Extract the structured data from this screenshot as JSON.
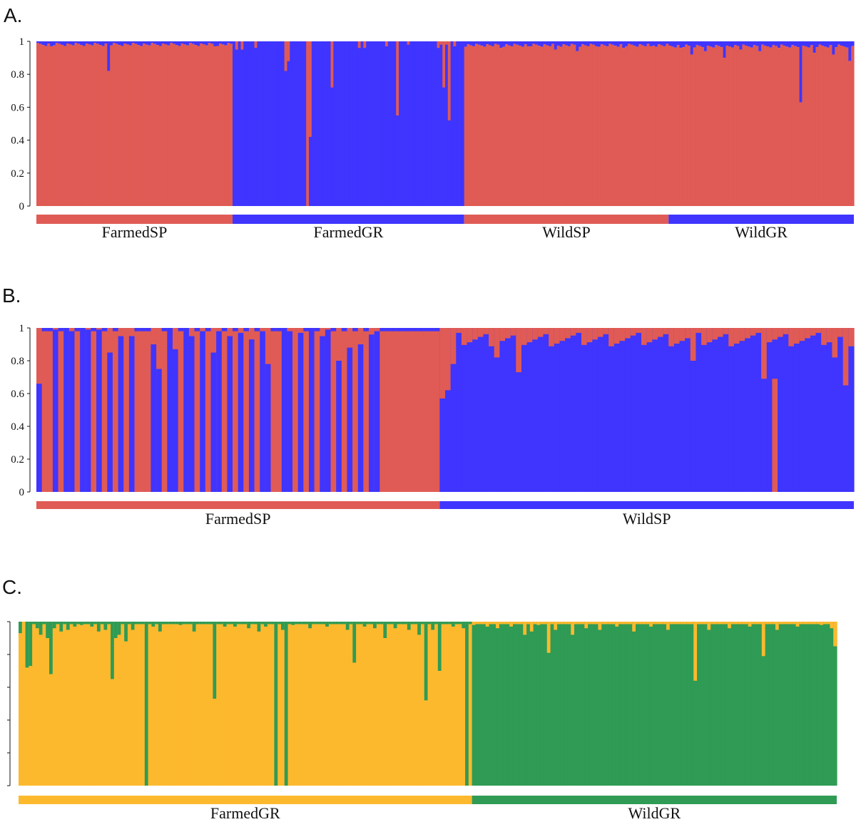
{
  "figure": {
    "panels": [
      "A.",
      "B.",
      "C."
    ]
  },
  "chart_data": [
    {
      "type": "bar",
      "stacked": true,
      "label": "A.",
      "n_individuals": 300,
      "ylim": [
        0,
        1
      ],
      "yticks": [
        "0",
        "0.2",
        "0.4",
        "0.6",
        "0.8",
        "1"
      ],
      "colors": [
        "#E05B55",
        "#3F35FF"
      ],
      "groups": [
        {
          "name": "FarmedSP",
          "start": 0,
          "end": 72,
          "color": "#E05B55",
          "dominant": 0,
          "base_minor": 0.01
        },
        {
          "name": "FarmedGR",
          "start": 72,
          "end": 157,
          "color": "#3F35FF",
          "dominant": 1,
          "base_minor": 0.0
        },
        {
          "name": "WildSP",
          "start": 157,
          "end": 232,
          "color": "#E05B55",
          "dominant": 0,
          "base_minor": 0.015
        },
        {
          "name": "WildGR",
          "start": 232,
          "end": 300,
          "color": "#3F35FF",
          "dominant": 0,
          "base_minor": 0.02
        }
      ],
      "spikes": [
        [
          26,
          0.82
        ],
        [
          65,
          0.03
        ],
        [
          5,
          0.03
        ],
        [
          40,
          0.02
        ],
        [
          73,
          0.05
        ],
        [
          75,
          0.05
        ],
        [
          80,
          0.04
        ],
        [
          91,
          0.18
        ],
        [
          92,
          0.12
        ],
        [
          99,
          1.0
        ],
        [
          100,
          0.58
        ],
        [
          108,
          0.28
        ],
        [
          118,
          0.04
        ],
        [
          120,
          0.04
        ],
        [
          128,
          0.03
        ],
        [
          132,
          0.45
        ],
        [
          136,
          0.02
        ],
        [
          147,
          0.04
        ],
        [
          148,
          0.02
        ],
        [
          149,
          0.28
        ],
        [
          150,
          0.02
        ],
        [
          151,
          0.48
        ],
        [
          153,
          0.03
        ],
        [
          170,
          0.04
        ],
        [
          180,
          0.03
        ],
        [
          190,
          0.05
        ],
        [
          198,
          0.06
        ],
        [
          205,
          0.03
        ],
        [
          215,
          0.04
        ],
        [
          225,
          0.03
        ],
        [
          236,
          0.04
        ],
        [
          240,
          0.08
        ],
        [
          245,
          0.06
        ],
        [
          252,
          0.1
        ],
        [
          258,
          0.05
        ],
        [
          265,
          0.06
        ],
        [
          272,
          0.04
        ],
        [
          280,
          0.37
        ],
        [
          285,
          0.07
        ],
        [
          292,
          0.08
        ],
        [
          298,
          0.12
        ]
      ],
      "bottom_spike": [
        [
          99,
          1.0
        ]
      ]
    },
    {
      "type": "bar",
      "stacked": true,
      "label": "B.",
      "n_individuals": 150,
      "ylim": [
        0,
        1
      ],
      "yticks": [
        "0",
        "0.2",
        "0.4",
        "0.6",
        "0.8",
        "1"
      ],
      "colors": [
        "#E05B55",
        "#3F35FF"
      ],
      "groups": [
        {
          "name": "FarmedSP",
          "start": 0,
          "end": 74,
          "color": "#E05B55"
        },
        {
          "name": "WildSP",
          "start": 74,
          "end": 150,
          "color": "#3F35FF"
        }
      ],
      "farmed_pattern": [
        0.66,
        0.0,
        0.0,
        0.64,
        0.0,
        0.0,
        0.0,
        0.0,
        0.72,
        0.0,
        0.0,
        0.84,
        0.0,
        0.0,
        0.0,
        0.0,
        0.52,
        0.0,
        0.0,
        0.0,
        0.0,
        0.92,
        0.0,
        0.0,
        0.0,
        0.0,
        0.0,
        0.8,
        0.0,
        0.0,
        0.0,
        0.0,
        0.52,
        0.0,
        0.0,
        0.0,
        0.0,
        0.2,
        0.0,
        0.0,
        0.0,
        0.0,
        0.68,
        0.0,
        0.0,
        0.0,
        0.0,
        0.95,
        0.0,
        0.0,
        0.0,
        0.0,
        0.38,
        0.0,
        0.0,
        0.0,
        0.0,
        0.0,
        0.0,
        0.85,
        0.0,
        0.0,
        0.0,
        0.0,
        0.0,
        0.0,
        0.0,
        0.0,
        0.0,
        0.0,
        0.0,
        0.0,
        0.0,
        0.0
      ],
      "farmed_blue_gaps": [
        [
          3,
          0.99
        ],
        [
          5,
          1
        ],
        [
          6,
          0.98
        ],
        [
          8,
          1
        ],
        [
          9,
          0.99
        ],
        [
          11,
          0.99
        ],
        [
          13,
          0.85
        ],
        [
          15,
          0.95
        ],
        [
          17,
          0.95
        ],
        [
          21,
          0.9
        ],
        [
          22,
          0.75
        ],
        [
          24,
          1.0
        ],
        [
          25,
          0.87
        ],
        [
          27,
          1.0
        ],
        [
          28,
          0.95
        ],
        [
          30,
          0.98
        ],
        [
          32,
          0.85
        ],
        [
          33,
          0.98
        ],
        [
          35,
          0.95
        ],
        [
          37,
          0.97
        ],
        [
          39,
          0.93
        ],
        [
          41,
          0.98
        ],
        [
          42,
          0.78
        ],
        [
          45,
          1.0
        ],
        [
          46,
          0.98
        ],
        [
          48,
          0.97
        ],
        [
          50,
          1.0
        ],
        [
          52,
          0.95
        ],
        [
          53,
          0.99
        ],
        [
          55,
          0.8
        ],
        [
          57,
          0.88
        ],
        [
          59,
          0.9
        ],
        [
          61,
          0.96
        ],
        [
          62,
          0.98
        ]
      ],
      "wild_red_top": 0.08
    },
    {
      "type": "bar",
      "stacked": true,
      "label": "C.",
      "n_individuals": 240,
      "ylim": [
        0,
        1
      ],
      "colors": [
        "#FDB92E",
        "#2F9B54"
      ],
      "groups": [
        {
          "name": "FarmedGR",
          "start": 0,
          "end": 133,
          "color": "#FDB92E"
        },
        {
          "name": "WildGR",
          "start": 133,
          "end": 240,
          "color": "#2F9B54"
        }
      ],
      "farmed_green": [
        [
          0,
          0.07
        ],
        [
          1,
          0.0
        ],
        [
          2,
          0.28
        ],
        [
          3,
          0.27
        ],
        [
          5,
          0.04
        ],
        [
          6,
          0.08
        ],
        [
          8,
          0.1
        ],
        [
          9,
          0.32
        ],
        [
          10,
          0.04
        ],
        [
          12,
          0.06
        ],
        [
          14,
          0.05
        ],
        [
          16,
          0.03
        ],
        [
          18,
          0.02
        ],
        [
          21,
          0.03
        ],
        [
          23,
          0.06
        ],
        [
          25,
          0.05
        ],
        [
          27,
          0.35
        ],
        [
          28,
          0.1
        ],
        [
          29,
          0.08
        ],
        [
          31,
          0.12
        ],
        [
          33,
          0.05
        ],
        [
          37,
          1.0
        ],
        [
          39,
          0.03
        ],
        [
          41,
          0.06
        ],
        [
          47,
          0.02
        ],
        [
          51,
          0.06
        ],
        [
          57,
          0.47
        ],
        [
          60,
          0.03
        ],
        [
          63,
          0.03
        ],
        [
          67,
          0.04
        ],
        [
          70,
          0.06
        ],
        [
          72,
          0.03
        ],
        [
          75,
          1.0
        ],
        [
          77,
          0.05
        ],
        [
          78,
          1.0
        ],
        [
          80,
          0.02
        ],
        [
          85,
          0.04
        ],
        [
          90,
          0.03
        ],
        [
          96,
          0.05
        ],
        [
          98,
          0.25
        ],
        [
          101,
          0.03
        ],
        [
          104,
          0.04
        ],
        [
          107,
          0.1
        ],
        [
          110,
          0.04
        ],
        [
          114,
          0.05
        ],
        [
          117,
          0.08
        ],
        [
          119,
          0.48
        ],
        [
          121,
          0.05
        ],
        [
          123,
          0.3
        ],
        [
          127,
          0.03
        ],
        [
          130,
          0.04
        ],
        [
          131,
          1.0
        ]
      ],
      "wild_yellow": [
        [
          133,
          0.02
        ],
        [
          137,
          0.03
        ],
        [
          140,
          0.04
        ],
        [
          144,
          0.03
        ],
        [
          148,
          0.08
        ],
        [
          150,
          0.06
        ],
        [
          152,
          0.02
        ],
        [
          155,
          0.19
        ],
        [
          157,
          0.05
        ],
        [
          162,
          0.08
        ],
        [
          166,
          0.04
        ],
        [
          170,
          0.05
        ],
        [
          175,
          0.03
        ],
        [
          180,
          0.06
        ],
        [
          185,
          0.03
        ],
        [
          190,
          0.05
        ],
        [
          198,
          0.36
        ],
        [
          202,
          0.05
        ],
        [
          208,
          0.04
        ],
        [
          214,
          0.03
        ],
        [
          218,
          0.21
        ],
        [
          222,
          0.05
        ],
        [
          228,
          0.03
        ],
        [
          235,
          0.02
        ],
        [
          238,
          0.04
        ],
        [
          239,
          0.15
        ]
      ]
    }
  ]
}
